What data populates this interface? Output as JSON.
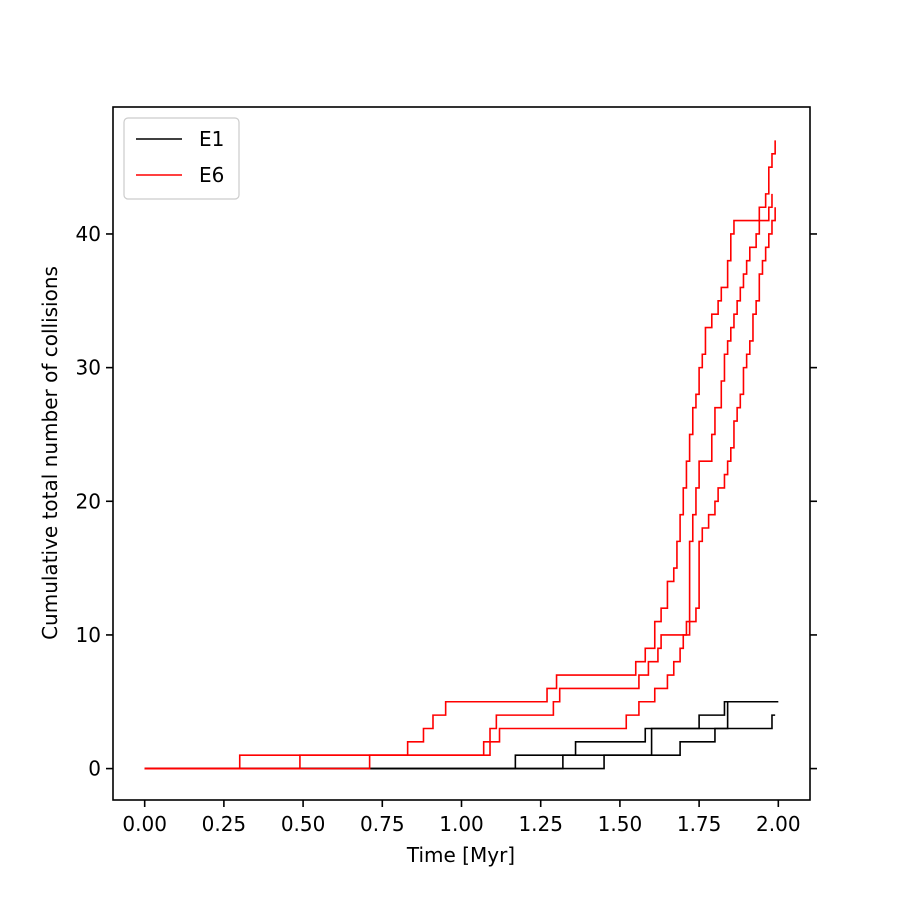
{
  "chart_data": {
    "type": "line",
    "step": true,
    "title": "",
    "xlabel": "Time [Myr]",
    "ylabel": "Cumulative total number of collisions",
    "xlim": [
      -0.1,
      2.1
    ],
    "ylim": [
      -2.35,
      49.5
    ],
    "xticks": [
      0.0,
      0.25,
      0.5,
      0.75,
      1.0,
      1.25,
      1.5,
      1.75,
      2.0
    ],
    "xtick_labels": [
      "0.00",
      "0.25",
      "0.50",
      "0.75",
      "1.00",
      "1.25",
      "1.50",
      "1.75",
      "2.00"
    ],
    "yticks": [
      0,
      10,
      20,
      30,
      40
    ],
    "ytick_labels": [
      "0",
      "10",
      "20",
      "30",
      "40"
    ],
    "ticks_mirrored_right": true,
    "grid": false,
    "legend": {
      "placement": "top-left",
      "entries": [
        {
          "label": "E1",
          "color": "#000000"
        },
        {
          "label": "E6",
          "color": "#ff0000"
        }
      ]
    },
    "series": [
      {
        "group": "E1",
        "color": "#000000",
        "x": [
          0.0,
          1.17,
          1.36,
          1.58,
          1.84,
          2.0
        ],
        "y": [
          0,
          1,
          2,
          3,
          5,
          5
        ]
      },
      {
        "group": "E1",
        "color": "#000000",
        "x": [
          0.0,
          1.32,
          1.6,
          1.75,
          1.83,
          1.99
        ],
        "y": [
          0,
          1,
          3,
          4,
          5,
          5
        ]
      },
      {
        "group": "E1",
        "color": "#000000",
        "x": [
          0.0,
          1.45,
          1.69,
          1.8,
          1.98,
          1.99
        ],
        "y": [
          0,
          1,
          2,
          3,
          4,
          4
        ]
      },
      {
        "group": "E6",
        "color": "#ff0000",
        "x": [
          0.0,
          0.3,
          0.83,
          0.88,
          0.91,
          0.93,
          0.95,
          1.27,
          1.3,
          1.55,
          1.58,
          1.61,
          1.63,
          1.65,
          1.67,
          1.68,
          1.69,
          1.7,
          1.71,
          1.72,
          1.73,
          1.74,
          1.75,
          1.76,
          1.77,
          1.79,
          1.81,
          1.82,
          1.84,
          1.85,
          1.86,
          1.87,
          1.88,
          1.89,
          1.9,
          1.92,
          1.93,
          1.94,
          1.95,
          1.96,
          1.97,
          1.98,
          1.99
        ],
        "y": [
          0,
          1,
          2,
          3,
          4,
          4,
          5,
          6,
          7,
          8,
          9,
          11,
          12,
          14,
          15,
          17,
          19,
          21,
          23,
          25,
          27,
          28,
          30,
          31,
          33,
          34,
          35,
          36,
          38,
          40,
          41,
          41,
          41,
          41,
          41,
          41,
          41,
          42,
          42,
          43,
          45,
          46,
          47
        ]
      },
      {
        "group": "E6",
        "color": "#ff0000",
        "x": [
          0.0,
          0.49,
          1.07,
          1.09,
          1.11,
          1.29,
          1.31,
          1.56,
          1.59,
          1.62,
          1.63,
          1.64,
          1.65,
          1.66,
          1.69,
          1.7,
          1.71,
          1.72,
          1.73,
          1.74,
          1.75,
          1.76,
          1.77,
          1.78,
          1.79,
          1.8,
          1.82,
          1.83,
          1.84,
          1.85,
          1.86,
          1.87,
          1.88,
          1.89,
          1.9,
          1.91,
          1.93,
          1.94,
          1.96,
          1.97,
          1.98
        ],
        "y": [
          0,
          1,
          2,
          3,
          4,
          5,
          6,
          7,
          8,
          9,
          10,
          10,
          10,
          10,
          10,
          10,
          11,
          17,
          19,
          21,
          23,
          23,
          23,
          23,
          25,
          27,
          29,
          31,
          32,
          33,
          34,
          35,
          36,
          37,
          38,
          39,
          40,
          41,
          41,
          42,
          43
        ]
      },
      {
        "group": "E6",
        "color": "#ff0000",
        "x": [
          0.0,
          0.71,
          1.09,
          1.12,
          1.15,
          1.47,
          1.52,
          1.56,
          1.61,
          1.65,
          1.67,
          1.69,
          1.7,
          1.72,
          1.74,
          1.75,
          1.76,
          1.78,
          1.8,
          1.81,
          1.83,
          1.84,
          1.85,
          1.86,
          1.87,
          1.88,
          1.89,
          1.9,
          1.91,
          1.92,
          1.93,
          1.94,
          1.95,
          1.96,
          1.97,
          1.98,
          1.99
        ],
        "y": [
          0,
          1,
          2,
          3,
          3,
          3,
          4,
          5,
          6,
          7,
          8,
          9,
          10,
          11,
          12,
          17,
          18,
          19,
          20,
          21,
          22,
          23,
          24,
          26,
          27,
          28,
          30,
          31,
          32,
          34,
          35,
          37,
          38,
          39,
          40,
          41,
          42
        ]
      }
    ]
  }
}
